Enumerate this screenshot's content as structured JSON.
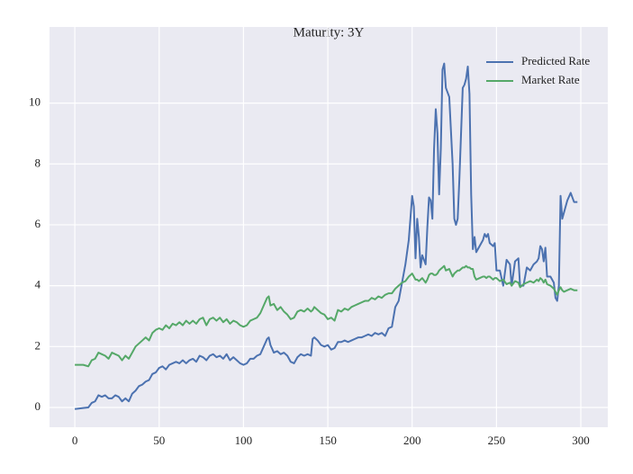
{
  "chart_data": {
    "type": "line",
    "title": "Maturity: 3Y",
    "x": [
      0,
      5,
      8,
      10,
      12,
      14,
      16,
      18,
      20,
      22,
      24,
      26,
      28,
      30,
      32,
      34,
      36,
      38,
      40,
      42,
      44,
      46,
      48,
      50,
      52,
      54,
      56,
      58,
      60,
      62,
      64,
      66,
      68,
      70,
      72,
      74,
      76,
      78,
      80,
      82,
      84,
      86,
      88,
      90,
      92,
      94,
      96,
      98,
      100,
      102,
      104,
      106,
      108,
      110,
      112,
      114,
      115,
      116,
      118,
      120,
      122,
      124,
      126,
      128,
      130,
      132,
      134,
      136,
      138,
      140,
      141,
      142,
      144,
      146,
      148,
      150,
      152,
      154,
      156,
      158,
      160,
      162,
      164,
      166,
      168,
      170,
      172,
      174,
      176,
      178,
      180,
      182,
      184,
      186,
      188,
      190,
      192,
      194,
      196,
      198,
      200,
      201,
      202,
      203,
      204,
      205,
      206,
      208,
      209,
      210,
      211,
      212,
      213,
      214,
      215,
      216,
      217,
      218,
      219,
      220,
      222,
      224,
      225,
      226,
      227,
      228,
      230,
      231,
      232,
      233,
      234,
      235,
      236,
      237,
      238,
      240,
      242,
      243,
      244,
      245,
      246,
      248,
      249,
      250,
      252,
      254,
      256,
      258,
      259,
      261,
      263,
      264,
      266,
      268,
      270,
      272,
      274,
      275,
      276,
      277,
      278,
      279,
      280,
      282,
      284,
      285,
      286,
      287,
      288,
      289,
      290,
      292,
      294,
      296,
      298
    ],
    "series": [
      {
        "name": "Predicted Rate",
        "color": "#4c72b0",
        "values": [
          -0.05,
          -0.02,
          0,
          0.15,
          0.2,
          0.4,
          0.35,
          0.4,
          0.3,
          0.3,
          0.4,
          0.35,
          0.2,
          0.3,
          0.2,
          0.45,
          0.55,
          0.7,
          0.75,
          0.85,
          0.9,
          1.1,
          1.15,
          1.3,
          1.35,
          1.25,
          1.4,
          1.45,
          1.5,
          1.45,
          1.55,
          1.45,
          1.55,
          1.6,
          1.5,
          1.7,
          1.65,
          1.55,
          1.7,
          1.75,
          1.65,
          1.7,
          1.6,
          1.75,
          1.55,
          1.65,
          1.55,
          1.45,
          1.4,
          1.45,
          1.6,
          1.6,
          1.7,
          1.75,
          2.0,
          2.25,
          2.3,
          2.05,
          1.8,
          1.85,
          1.75,
          1.8,
          1.7,
          1.5,
          1.45,
          1.65,
          1.75,
          1.7,
          1.75,
          1.7,
          2.25,
          2.3,
          2.2,
          2.05,
          2.0,
          2.05,
          1.9,
          1.95,
          2.15,
          2.15,
          2.2,
          2.15,
          2.2,
          2.25,
          2.3,
          2.3,
          2.35,
          2.4,
          2.35,
          2.45,
          2.4,
          2.45,
          2.35,
          2.6,
          2.65,
          3.3,
          3.5,
          4.1,
          4.7,
          5.5,
          6.95,
          6.6,
          4.9,
          6.2,
          5.6,
          4.6,
          5.0,
          4.7,
          5.9,
          6.9,
          6.8,
          6.2,
          8.5,
          9.8,
          9.0,
          7.0,
          8.5,
          11.1,
          11.3,
          10.5,
          10.2,
          8.0,
          6.2,
          6.0,
          6.2,
          7.5,
          10.5,
          10.6,
          10.8,
          11.2,
          10.3,
          7.0,
          5.2,
          5.6,
          5.1,
          5.3,
          5.5,
          5.7,
          5.6,
          5.7,
          5.4,
          5.3,
          5.4,
          4.5,
          4.5,
          4.0,
          4.85,
          4.7,
          4.0,
          4.8,
          4.9,
          4.0,
          4.0,
          4.6,
          4.5,
          4.7,
          4.8,
          4.9,
          5.3,
          5.2,
          4.8,
          5.25,
          4.3,
          4.3,
          4.1,
          3.6,
          3.5,
          4.0,
          6.95,
          6.2,
          6.4,
          6.8,
          7.05,
          6.75,
          6.75
        ]
      },
      {
        "name": "Market Rate",
        "color": "#55a868",
        "values": [
          1.4,
          1.4,
          1.35,
          1.55,
          1.6,
          1.8,
          1.75,
          1.7,
          1.6,
          1.8,
          1.75,
          1.7,
          1.55,
          1.7,
          1.6,
          1.8,
          2.0,
          2.1,
          2.2,
          2.3,
          2.2,
          2.45,
          2.55,
          2.6,
          2.55,
          2.7,
          2.6,
          2.75,
          2.7,
          2.8,
          2.7,
          2.85,
          2.75,
          2.85,
          2.75,
          2.9,
          2.95,
          2.7,
          2.9,
          2.95,
          2.85,
          2.95,
          2.8,
          2.9,
          2.75,
          2.85,
          2.8,
          2.7,
          2.65,
          2.7,
          2.85,
          2.9,
          2.95,
          3.1,
          3.35,
          3.6,
          3.65,
          3.35,
          3.4,
          3.2,
          3.3,
          3.15,
          3.05,
          2.9,
          2.95,
          3.15,
          3.2,
          3.15,
          3.25,
          3.15,
          3.2,
          3.3,
          3.2,
          3.1,
          3.05,
          2.9,
          2.95,
          2.85,
          3.2,
          3.15,
          3.25,
          3.2,
          3.3,
          3.35,
          3.4,
          3.45,
          3.5,
          3.5,
          3.6,
          3.55,
          3.65,
          3.6,
          3.7,
          3.75,
          3.75,
          3.9,
          4.0,
          4.1,
          4.15,
          4.3,
          4.4,
          4.3,
          4.2,
          4.2,
          4.15,
          4.2,
          4.25,
          4.1,
          4.2,
          4.35,
          4.4,
          4.4,
          4.35,
          4.35,
          4.4,
          4.5,
          4.55,
          4.6,
          4.65,
          4.5,
          4.55,
          4.3,
          4.4,
          4.45,
          4.5,
          4.5,
          4.6,
          4.6,
          4.65,
          4.6,
          4.6,
          4.55,
          4.55,
          4.3,
          4.2,
          4.25,
          4.3,
          4.3,
          4.25,
          4.3,
          4.3,
          4.2,
          4.25,
          4.25,
          4.15,
          4.2,
          4.05,
          4.1,
          4.0,
          4.15,
          4.1,
          3.95,
          4.05,
          4.1,
          4.15,
          4.1,
          4.2,
          4.15,
          4.25,
          4.2,
          4.1,
          4.2,
          4.05,
          4.0,
          3.9,
          3.8,
          3.7,
          3.85,
          3.95,
          3.85,
          3.8,
          3.85,
          3.9,
          3.85,
          3.85
        ]
      }
    ],
    "xlim": [
      -15,
      316
    ],
    "ylim": [
      -0.65,
      12.5
    ],
    "xticks": [
      0,
      50,
      100,
      150,
      200,
      250,
      300
    ],
    "yticks": [
      0,
      2,
      4,
      6,
      8,
      10
    ],
    "grid": true,
    "legend": "upper right"
  }
}
